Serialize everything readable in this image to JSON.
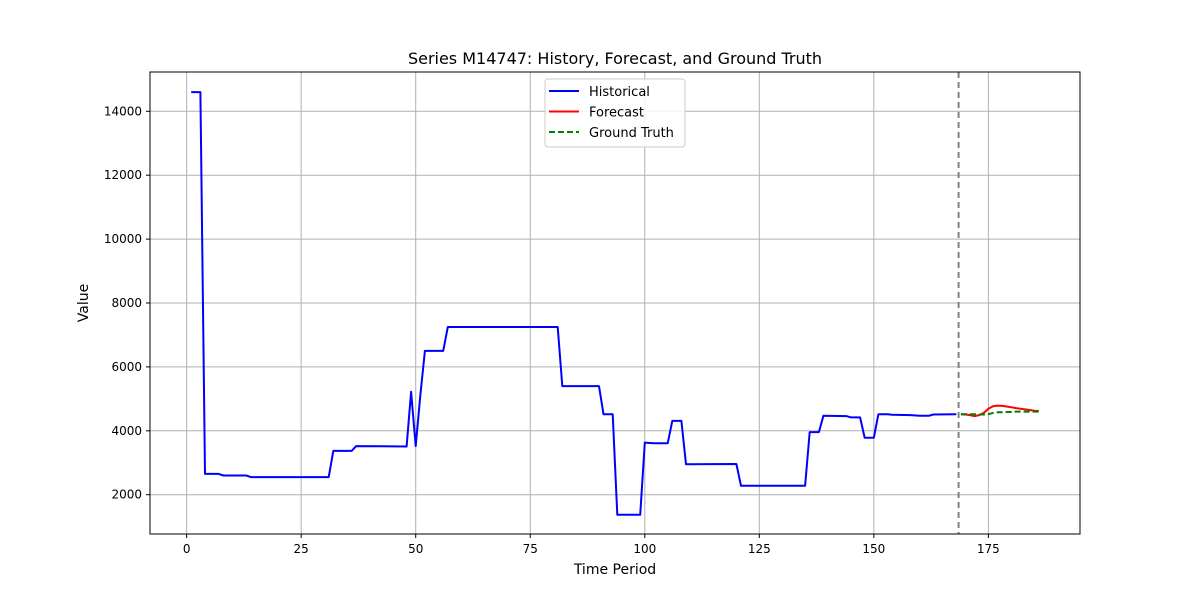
{
  "chart_data": {
    "type": "line",
    "title": "Series M14747: History, Forecast, and Ground Truth",
    "xlabel": "Time Period",
    "ylabel": "Value",
    "xlim": [
      -8,
      195
    ],
    "ylim": [
      770,
      15230
    ],
    "xticks": [
      0,
      25,
      50,
      75,
      100,
      125,
      150,
      175
    ],
    "yticks": [
      2000,
      4000,
      6000,
      8000,
      10000,
      12000,
      14000
    ],
    "grid": true,
    "legend_position": "top-center",
    "forecast_start": 168.5,
    "colors": {
      "historical": "#0000ff",
      "forecast": "#ff0000",
      "ground_truth": "#008000",
      "divider": "#808080",
      "grid": "#b0b0b0"
    },
    "series": [
      {
        "name": "Historical",
        "style": "solid",
        "color": "#0000ff",
        "points": [
          [
            1,
            14600
          ],
          [
            3,
            14600
          ],
          [
            4,
            2650
          ],
          [
            7,
            2650
          ],
          [
            8,
            2600
          ],
          [
            13,
            2600
          ],
          [
            14,
            2550
          ],
          [
            31,
            2550
          ],
          [
            32,
            3370
          ],
          [
            36,
            3370
          ],
          [
            37,
            3520
          ],
          [
            48,
            3510
          ],
          [
            49,
            5220
          ],
          [
            50,
            3520
          ],
          [
            51,
            5100
          ],
          [
            52,
            6500
          ],
          [
            56,
            6500
          ],
          [
            57,
            7250
          ],
          [
            81,
            7250
          ],
          [
            82,
            5400
          ],
          [
            90,
            5400
          ],
          [
            91,
            4520
          ],
          [
            93,
            4520
          ],
          [
            94,
            1370
          ],
          [
            99,
            1370
          ],
          [
            100,
            3630
          ],
          [
            102,
            3610
          ],
          [
            105,
            3610
          ],
          [
            106,
            4310
          ],
          [
            108,
            4310
          ],
          [
            109,
            2950
          ],
          [
            120,
            2960
          ],
          [
            121,
            2280
          ],
          [
            135,
            2280
          ],
          [
            136,
            3960
          ],
          [
            138,
            3960
          ],
          [
            139,
            4470
          ],
          [
            144,
            4460
          ],
          [
            145,
            4420
          ],
          [
            147,
            4420
          ],
          [
            148,
            3780
          ],
          [
            150,
            3780
          ],
          [
            151,
            4520
          ],
          [
            153,
            4520
          ],
          [
            154,
            4500
          ],
          [
            158,
            4490
          ],
          [
            160,
            4470
          ],
          [
            162,
            4470
          ],
          [
            163,
            4510
          ],
          [
            168,
            4520
          ]
        ]
      },
      {
        "name": "Forecast",
        "style": "solid",
        "color": "#ff0000",
        "points": [
          [
            169,
            4520
          ],
          [
            170,
            4510
          ],
          [
            171,
            4490
          ],
          [
            172,
            4460
          ],
          [
            173,
            4490
          ],
          [
            174,
            4560
          ],
          [
            175,
            4690
          ],
          [
            176,
            4770
          ],
          [
            177,
            4790
          ],
          [
            178,
            4780
          ],
          [
            179,
            4760
          ],
          [
            180,
            4740
          ],
          [
            181,
            4710
          ],
          [
            182,
            4690
          ],
          [
            183,
            4670
          ],
          [
            184,
            4650
          ],
          [
            185,
            4630
          ],
          [
            186,
            4620
          ]
        ]
      },
      {
        "name": "Ground Truth",
        "style": "dashed",
        "color": "#008000",
        "points": [
          [
            169,
            4520
          ],
          [
            170,
            4520
          ],
          [
            171,
            4520
          ],
          [
            172,
            4520
          ],
          [
            173,
            4510
          ],
          [
            174,
            4510
          ],
          [
            175,
            4520
          ],
          [
            176,
            4560
          ],
          [
            177,
            4580
          ],
          [
            178,
            4580
          ],
          [
            179,
            4590
          ],
          [
            180,
            4590
          ],
          [
            181,
            4600
          ],
          [
            182,
            4600
          ],
          [
            183,
            4600
          ],
          [
            184,
            4600
          ],
          [
            185,
            4600
          ],
          [
            186,
            4600
          ]
        ]
      }
    ]
  }
}
